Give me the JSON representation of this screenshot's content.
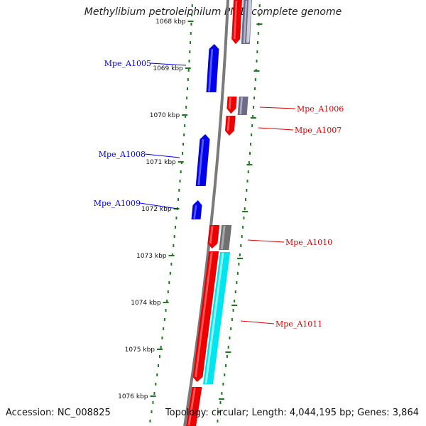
{
  "title": "Methylibium petroleiphilum PM1, complete genome",
  "accession": "Accession: NC_008825",
  "topology": "Topology: circular; Length: 4,044,195 bp; Genes: 3,864",
  "ticks": [
    "1068 kbp",
    "1069 kbp",
    "1070 kbp",
    "1071 kbp",
    "1072 kbp",
    "1073 kbp",
    "1074 kbp",
    "1075 kbp",
    "1076 kbp"
  ],
  "genes": [
    {
      "name": "Mpe_A1005",
      "strand": "reverse",
      "color": "#0000ee"
    },
    {
      "name": "Mpe_A1006",
      "strand": "forward",
      "color": "#dd0000"
    },
    {
      "name": "Mpe_A1007",
      "strand": "forward",
      "color": "#dd0000"
    },
    {
      "name": "Mpe_A1008",
      "strand": "reverse",
      "color": "#0000ee"
    },
    {
      "name": "Mpe_A1009",
      "strand": "reverse",
      "color": "#0000ee"
    },
    {
      "name": "Mpe_A1010",
      "strand": "forward",
      "color": "#dd0000"
    },
    {
      "name": "Mpe_A1011",
      "strand": "forward",
      "color": "#dd0000"
    }
  ],
  "colors": {
    "backbone": "#7a7a7a",
    "tick": "#1a7a1a",
    "cds_forward": "#ee0000",
    "cds_reverse": "#0000ee",
    "rna": "#00e5ee",
    "gene_feature": "#6b6b8a",
    "gene_feature_gray": "#707070"
  }
}
